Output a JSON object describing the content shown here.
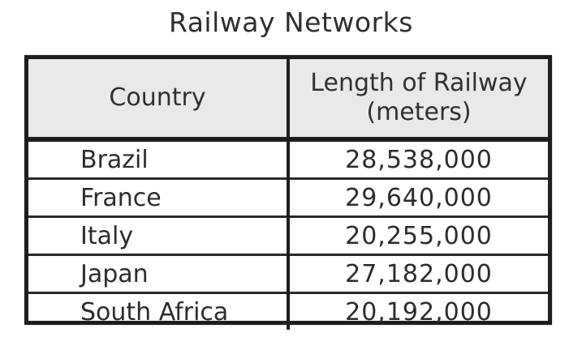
{
  "title": "Railway Networks",
  "table": {
    "headers": {
      "country": "Country",
      "length_line1": "Length of Railway",
      "length_line2": "(meters)"
    },
    "rows": [
      {
        "country": "Brazil",
        "length": "28,538,000"
      },
      {
        "country": "France",
        "length": "29,640,000"
      },
      {
        "country": "Italy",
        "length": "20,255,000"
      },
      {
        "country": "Japan",
        "length": "27,182,000"
      },
      {
        "country": "South Africa",
        "length": "20,192,000"
      }
    ]
  }
}
